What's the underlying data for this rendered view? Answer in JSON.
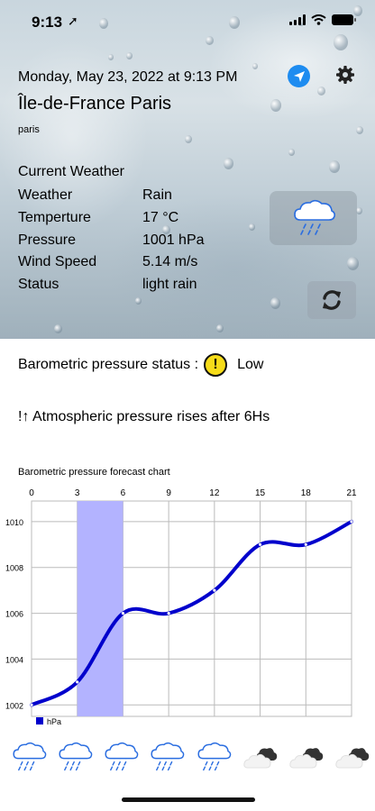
{
  "status_bar": {
    "time": "9:13",
    "location_arrow": "➚"
  },
  "header": {
    "date": "Monday, May 23, 2022 at 9:13 PM",
    "city": "Île-de-France Paris",
    "city_sub": "paris"
  },
  "current": {
    "title": "Current Weather",
    "rows": [
      {
        "label": "Weather",
        "value": "Rain"
      },
      {
        "label": "Temperture",
        "value": "17 °C"
      },
      {
        "label": "Pressure",
        "value": "1001 hPa"
      },
      {
        "label": "Wind Speed",
        "value": "5.14 m/s"
      },
      {
        "label": "Status",
        "value": "light rain"
      }
    ],
    "icon": "rain-cloud-icon"
  },
  "barometric": {
    "label": "Barometric pressure status :",
    "warn_symbol": "!",
    "level": "Low"
  },
  "trend": {
    "text": "!↑ Atmospheric pressure rises after 6Hs"
  },
  "colors": {
    "accent": "#1e8cf0",
    "line": "#0000cc",
    "highlight": "#b3b3ff",
    "warn": "#f6dc19"
  },
  "chart_data": {
    "type": "line",
    "title": "Barometric pressure forecast chart",
    "x_ticks": [
      "0",
      "3",
      "6",
      "9",
      "12",
      "15",
      "18",
      "21"
    ],
    "y_ticks": [
      "1002",
      "1004",
      "1006",
      "1008",
      "1010"
    ],
    "xlim": [
      0,
      21
    ],
    "ylim": [
      1001.5,
      1010.9
    ],
    "series": [
      {
        "name": "hPa",
        "x": [
          0,
          3,
          6,
          9,
          12,
          15,
          18,
          21
        ],
        "y": [
          1002,
          1003,
          1006,
          1006,
          1007,
          1009,
          1009,
          1010
        ]
      }
    ],
    "highlight_range": [
      3,
      6
    ],
    "legend": "bottom-left",
    "grid": true
  },
  "forecast": [
    {
      "icon": "rain-cloud-icon"
    },
    {
      "icon": "rain-cloud-icon"
    },
    {
      "icon": "rain-cloud-icon"
    },
    {
      "icon": "rain-cloud-icon"
    },
    {
      "icon": "rain-cloud-icon"
    },
    {
      "icon": "broken-clouds-icon"
    },
    {
      "icon": "broken-clouds-icon"
    },
    {
      "icon": "broken-clouds-icon"
    }
  ]
}
